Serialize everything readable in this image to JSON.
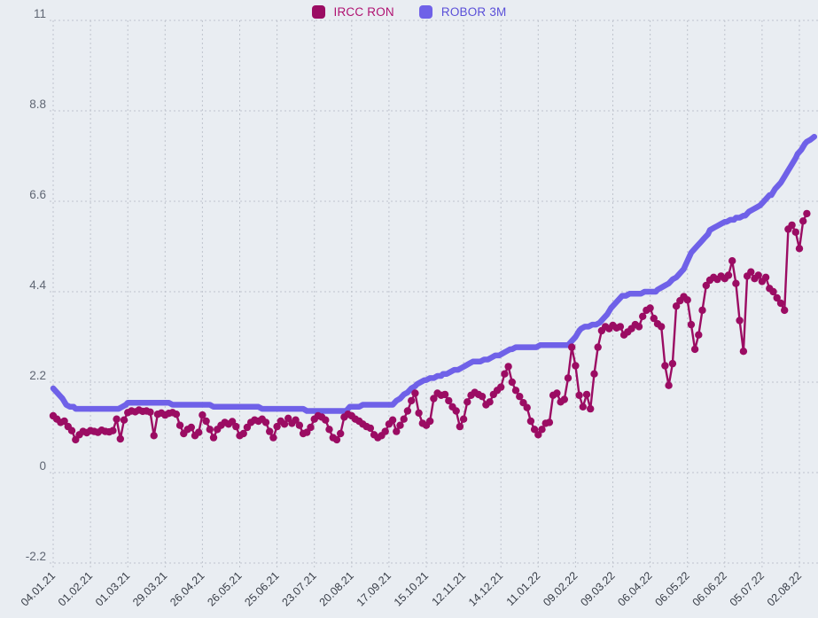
{
  "legend": [
    {
      "label": "IRCC RON",
      "color": "#9b0c63",
      "text_color": "#b01271"
    },
    {
      "label": "ROBOR 3M",
      "color": "#6f61e8",
      "text_color": "#5a4fd8"
    }
  ],
  "colors": {
    "background": "#e9edf2",
    "grid": "#bfc4cd",
    "y_label": "#5f6673",
    "x_label": "#383d47",
    "ircc": "#9b0c63",
    "robor": "#6f61e8"
  },
  "chart_data": {
    "type": "line",
    "title": "",
    "legend_position": "top-center",
    "grid": true,
    "y_axis": {
      "ticks": [
        11,
        8.8,
        6.6,
        4.4,
        2.2,
        0,
        -2.2
      ],
      "min": -2.2,
      "max": 11
    },
    "x_axis": {
      "tick_labels": [
        "04.01.21",
        "01.02.21",
        "01.03.21",
        "29.03.21",
        "26.04.21",
        "26.05.21",
        "25.06.21",
        "23.07.21",
        "20.08.21",
        "17.09.21",
        "15.10.21",
        "12.11.21",
        "14.12.21",
        "11.01.22",
        "09.02.22",
        "09.03.22",
        "06.04.22",
        "06.05.22",
        "06.06.22",
        "05.07.22",
        "02.08.22"
      ],
      "tick_day_indices": [
        0,
        20,
        40,
        60,
        80,
        100,
        120,
        140,
        160,
        180,
        200,
        220,
        240,
        260,
        280,
        300,
        320,
        340,
        360,
        380,
        400
      ],
      "day_max": 408
    },
    "series": [
      {
        "name": "ROBOR 3M",
        "color": "#6f61e8",
        "style": "thick-line",
        "breakpoints": [
          [
            0,
            2.05
          ],
          [
            2,
            1.93
          ],
          [
            5,
            1.8
          ],
          [
            7,
            1.64
          ],
          [
            12,
            1.56
          ],
          [
            33,
            1.53
          ],
          [
            37,
            1.6
          ],
          [
            40,
            1.69
          ],
          [
            48,
            1.7
          ],
          [
            66,
            1.67
          ],
          [
            90,
            1.61
          ],
          [
            114,
            1.57
          ],
          [
            138,
            1.52
          ],
          [
            157,
            1.51
          ],
          [
            160,
            1.62
          ],
          [
            182,
            1.64
          ],
          [
            188,
            1.9
          ],
          [
            195,
            2.15
          ],
          [
            200,
            2.26
          ],
          [
            209,
            2.38
          ],
          [
            217,
            2.52
          ],
          [
            225,
            2.68
          ],
          [
            233,
            2.76
          ],
          [
            241,
            2.9
          ],
          [
            246,
            3.02
          ],
          [
            249,
            3.06
          ],
          [
            276,
            3.1
          ],
          [
            280,
            3.3
          ],
          [
            283,
            3.52
          ],
          [
            291,
            3.6
          ],
          [
            295,
            3.75
          ],
          [
            300,
            4.05
          ],
          [
            305,
            4.28
          ],
          [
            311,
            4.35
          ],
          [
            324,
            4.43
          ],
          [
            330,
            4.62
          ],
          [
            335,
            4.8
          ],
          [
            338,
            4.97
          ],
          [
            342,
            5.35
          ],
          [
            347,
            5.6
          ],
          [
            352,
            5.88
          ],
          [
            356,
            6.01
          ],
          [
            361,
            6.12
          ],
          [
            366,
            6.18
          ],
          [
            371,
            6.27
          ],
          [
            375,
            6.4
          ],
          [
            380,
            6.55
          ],
          [
            385,
            6.77
          ],
          [
            390,
            7.05
          ],
          [
            394,
            7.35
          ],
          [
            399,
            7.75
          ],
          [
            404,
            8.05
          ],
          [
            408,
            8.17
          ]
        ]
      },
      {
        "name": "IRCC RON",
        "color": "#9b0c63",
        "style": "line+markers",
        "marker_radius": 4.2,
        "day_step": 2,
        "values": [
          1.38,
          1.3,
          1.22,
          1.25,
          1.12,
          1.02,
          0.8,
          0.92,
          1.0,
          0.97,
          1.02,
          1.0,
          0.98,
          1.03,
          1.0,
          0.99,
          1.02,
          1.3,
          0.82,
          1.28,
          1.46,
          1.5,
          1.48,
          1.52,
          1.49,
          1.5,
          1.47,
          0.9,
          1.42,
          1.45,
          1.4,
          1.44,
          1.46,
          1.42,
          1.15,
          0.95,
          1.05,
          1.1,
          0.9,
          0.98,
          1.4,
          1.25,
          1.05,
          0.85,
          1.05,
          1.15,
          1.22,
          1.18,
          1.24,
          1.12,
          0.9,
          0.95,
          1.1,
          1.22,
          1.28,
          1.25,
          1.3,
          1.22,
          1.0,
          0.85,
          1.12,
          1.25,
          1.18,
          1.32,
          1.2,
          1.28,
          1.15,
          0.95,
          0.98,
          1.1,
          1.3,
          1.38,
          1.35,
          1.28,
          1.05,
          0.85,
          0.8,
          0.95,
          1.35,
          1.42,
          1.38,
          1.3,
          1.25,
          1.18,
          1.12,
          1.08,
          0.92,
          0.85,
          0.9,
          1.0,
          1.18,
          1.28,
          1.0,
          1.15,
          1.3,
          1.5,
          1.75,
          1.93,
          1.45,
          1.2,
          1.15,
          1.25,
          1.8,
          1.93,
          1.88,
          1.9,
          1.75,
          1.6,
          1.5,
          1.12,
          1.3,
          1.72,
          1.88,
          1.95,
          1.9,
          1.85,
          1.65,
          1.72,
          1.9,
          2.0,
          2.08,
          2.4,
          2.58,
          2.2,
          2.0,
          1.85,
          1.7,
          1.58,
          1.25,
          1.05,
          0.92,
          1.05,
          1.2,
          1.22,
          1.88,
          1.93,
          1.72,
          1.78,
          2.3,
          3.05,
          2.6,
          1.88,
          1.6,
          1.9,
          1.55,
          2.4,
          3.05,
          3.45,
          3.55,
          3.5,
          3.58,
          3.52,
          3.55,
          3.35,
          3.42,
          3.5,
          3.6,
          3.55,
          3.8,
          3.95,
          4.0,
          3.75,
          3.62,
          3.55,
          2.6,
          2.12,
          2.65,
          4.05,
          4.18,
          4.28,
          4.2,
          3.6,
          3.0,
          3.35,
          3.95,
          4.55,
          4.68,
          4.75,
          4.7,
          4.78,
          4.72,
          4.8,
          5.15,
          4.6,
          3.7,
          2.95,
          4.78,
          4.88,
          4.72,
          4.8,
          4.65,
          4.75,
          4.48,
          4.4,
          4.25,
          4.12,
          3.95,
          5.92,
          6.02,
          5.85,
          5.45,
          6.12,
          6.3
        ]
      }
    ]
  }
}
